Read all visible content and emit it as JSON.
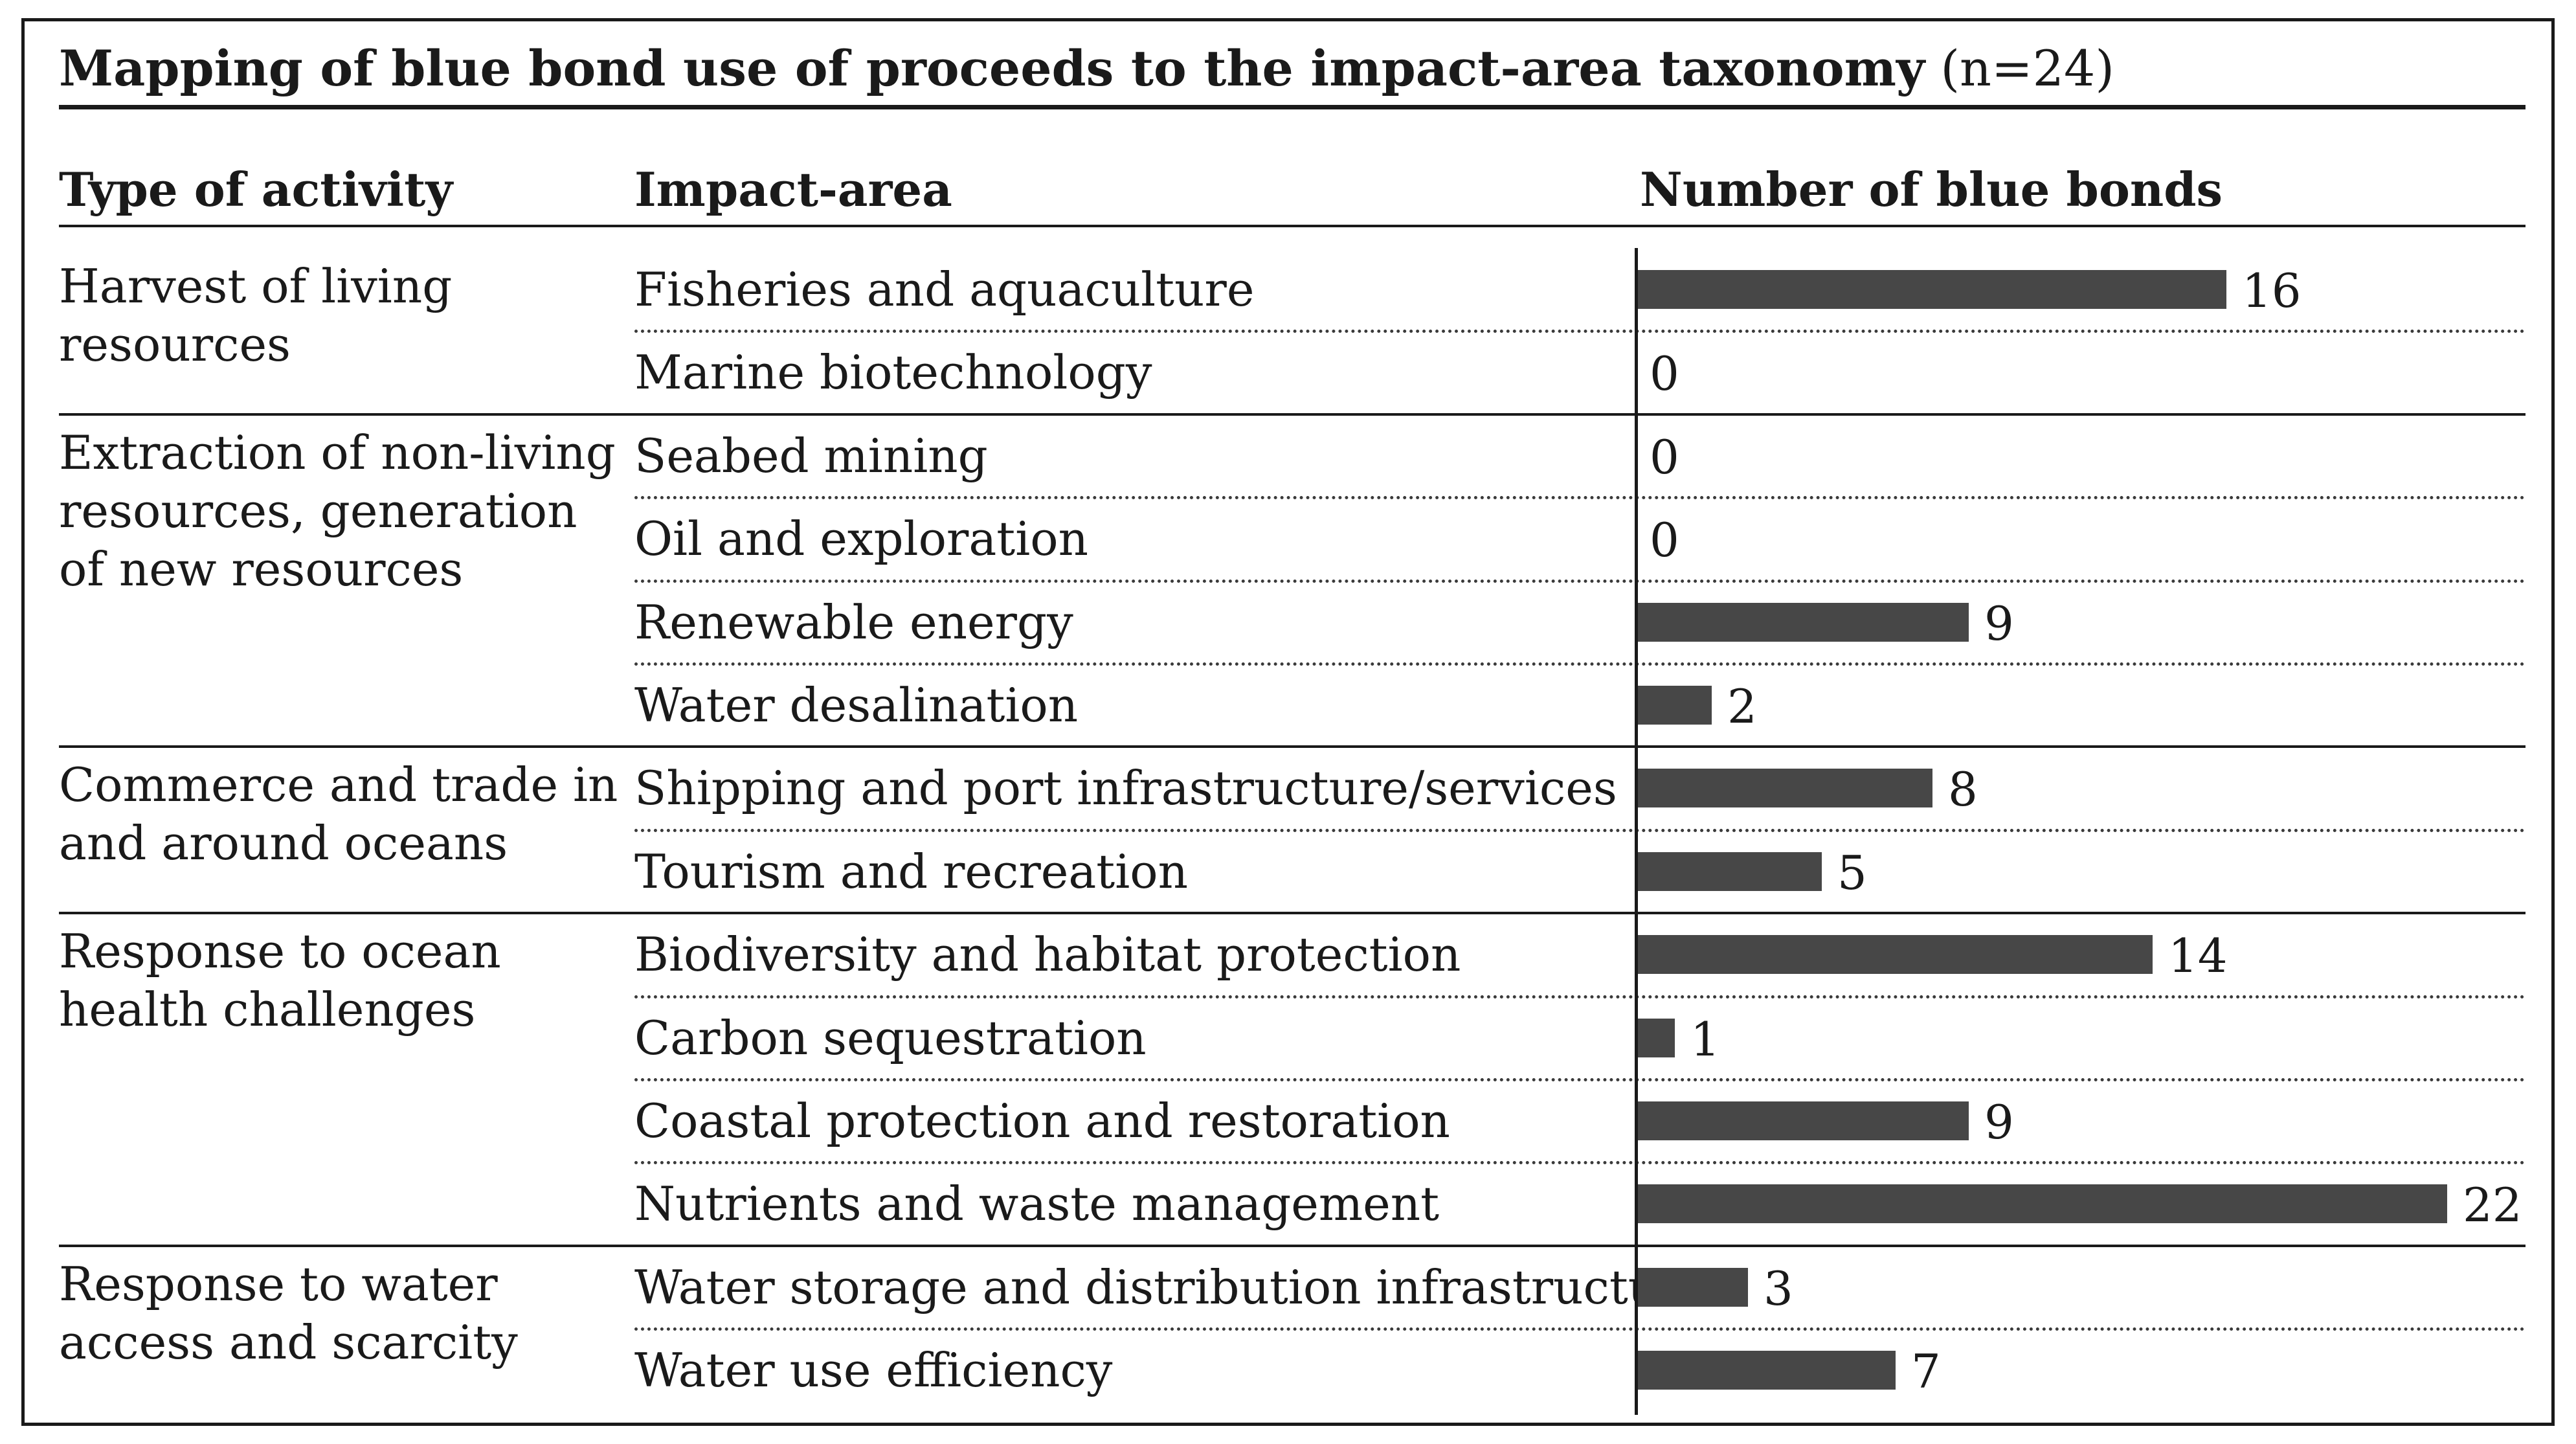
{
  "title": {
    "main": "Mapping of blue bond use of proceeds to the impact-area taxonomy",
    "sub": "(n=24)"
  },
  "headers": {
    "activity": "Type of activity",
    "impact": "Impact-area",
    "count": "Number of blue bonds"
  },
  "colors": {
    "bar": "#474747",
    "text": "#1a1a1a"
  },
  "chart_data": {
    "type": "bar",
    "orientation": "horizontal",
    "title": "Mapping of blue bond use of proceeds to the impact-area taxonomy (n=24)",
    "xlabel": "Number of blue bonds",
    "ylabel": "Impact-area",
    "xlim": [
      0,
      22
    ],
    "groups": [
      {
        "activity": "Harvest of living resources",
        "items": [
          {
            "category": "Fisheries and aquaculture",
            "value": 16
          },
          {
            "category": "Marine biotechnology",
            "value": 0
          }
        ]
      },
      {
        "activity": "Extraction of non-living resources, generation of new resources",
        "items": [
          {
            "category": "Seabed mining",
            "value": 0
          },
          {
            "category": "Oil and exploration",
            "value": 0
          },
          {
            "category": "Renewable energy",
            "value": 9
          },
          {
            "category": "Water desalination",
            "value": 2
          }
        ]
      },
      {
        "activity": "Commerce and trade in and around oceans",
        "items": [
          {
            "category": "Shipping and port infrastructure/services",
            "value": 8
          },
          {
            "category": "Tourism and recreation",
            "value": 5
          }
        ]
      },
      {
        "activity": "Response to ocean health challenges",
        "items": [
          {
            "category": "Biodiversity and habitat protection",
            "value": 14
          },
          {
            "category": "Carbon sequestration",
            "value": 1
          },
          {
            "category": "Coastal protection and restoration",
            "value": 9
          },
          {
            "category": "Nutrients and waste management",
            "value": 22
          }
        ]
      },
      {
        "activity": "Response to water access and scarcity",
        "items": [
          {
            "category": "Water storage and distribution infrastructure",
            "value": 3
          },
          {
            "category": "Water use efficiency",
            "value": 7
          }
        ]
      }
    ]
  }
}
